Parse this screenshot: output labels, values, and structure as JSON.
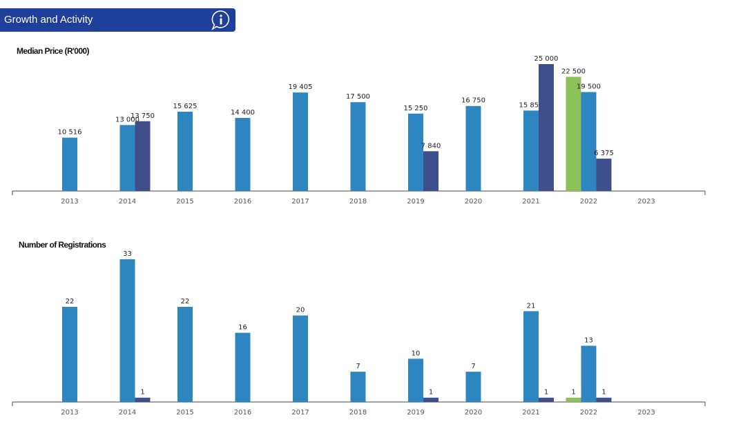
{
  "header": {
    "title": "Growth and Activity",
    "info_icon": "info-icon"
  },
  "colors": {
    "header_bg": "#1f3f9b",
    "series_a": "#2e86c1",
    "series_b": "#3f4f8c",
    "series_c": "#8cc15a",
    "axis": "#444444"
  },
  "chart_data": [
    {
      "type": "bar",
      "title": "Median Price (R'000)",
      "categories": [
        "2013",
        "2014",
        "2015",
        "2016",
        "2017",
        "2018",
        "2019",
        "2020",
        "2021",
        "2022",
        "2023"
      ],
      "series": [
        {
          "key": "c",
          "color": "#8cc15a",
          "values": [
            null,
            null,
            null,
            null,
            null,
            null,
            null,
            null,
            null,
            22500,
            null
          ],
          "labels": [
            "",
            "",
            "",
            "",
            "",
            "",
            "",
            "",
            "",
            "22 500",
            ""
          ]
        },
        {
          "key": "a",
          "color": "#2e86c1",
          "values": [
            10516,
            13000,
            15625,
            14400,
            19405,
            17500,
            15250,
            16750,
            15850,
            19500,
            null
          ],
          "labels": [
            "10 516",
            "13 000",
            "15 625",
            "14 400",
            "19 405",
            "17 500",
            "15 250",
            "16 750",
            "15 850",
            "19 500",
            ""
          ]
        },
        {
          "key": "b",
          "color": "#3f4f8c",
          "values": [
            null,
            13750,
            null,
            null,
            null,
            null,
            7840,
            null,
            25000,
            6375,
            null
          ],
          "labels": [
            "",
            "13 750",
            "",
            "",
            "",
            "",
            "7 840",
            "",
            "25 000",
            "6 375",
            ""
          ]
        }
      ],
      "ylim": [
        0,
        25000
      ]
    },
    {
      "type": "bar",
      "title": "Number of Registrations",
      "categories": [
        "2013",
        "2014",
        "2015",
        "2016",
        "2017",
        "2018",
        "2019",
        "2020",
        "2021",
        "2022",
        "2023"
      ],
      "series": [
        {
          "key": "c",
          "color": "#8cc15a",
          "values": [
            null,
            null,
            null,
            null,
            null,
            null,
            null,
            null,
            null,
            1,
            null
          ],
          "labels": [
            "",
            "",
            "",
            "",
            "",
            "",
            "",
            "",
            "",
            "1",
            ""
          ]
        },
        {
          "key": "a",
          "color": "#2e86c1",
          "values": [
            22,
            33,
            22,
            16,
            20,
            7,
            10,
            7,
            21,
            13,
            null
          ],
          "labels": [
            "22",
            "33",
            "22",
            "16",
            "20",
            "7",
            "10",
            "7",
            "21",
            "13",
            ""
          ]
        },
        {
          "key": "b",
          "color": "#3f4f8c",
          "values": [
            null,
            1,
            null,
            null,
            null,
            null,
            1,
            null,
            1,
            1,
            null
          ],
          "labels": [
            "",
            "1",
            "",
            "",
            "",
            "",
            "1",
            "",
            "1",
            "1",
            ""
          ]
        }
      ],
      "ylim": [
        0,
        33
      ]
    }
  ]
}
